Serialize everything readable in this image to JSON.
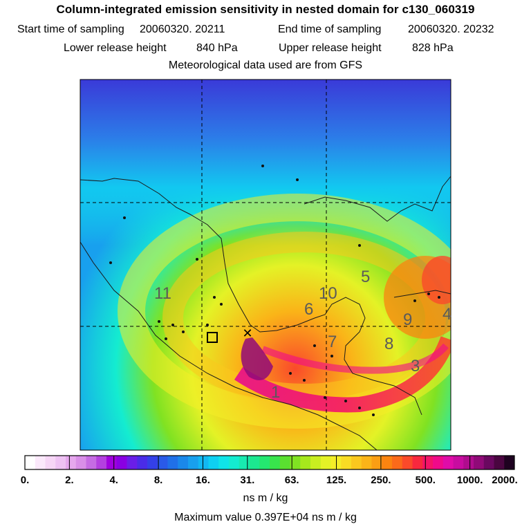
{
  "header": {
    "title": "Column-integrated emission sensitivity in nested domain for c130_060319",
    "start_label": "Start time of sampling",
    "start_value": "20060320. 20211",
    "end_label": "End time of sampling",
    "end_value": "20060320. 20232",
    "lower_label": "Lower release height",
    "lower_value": "840 hPa",
    "upper_label": "Upper release height",
    "upper_value": "828 hPa",
    "met_note": "Meteorological data used are from GFS"
  },
  "map": {
    "region_labels": [
      "11",
      "10",
      "6",
      "5",
      "9",
      "4",
      "7",
      "8",
      "3",
      "1"
    ],
    "gridline_style": "dashed"
  },
  "colorbar": {
    "tick_labels": [
      "0.",
      "2.",
      "4.",
      "8.",
      "16.",
      "31.",
      "63.",
      "125.",
      "250.",
      "500.",
      "1000.",
      "2000."
    ],
    "colors": [
      "#ffffff",
      "#fbe9fb",
      "#f6d6f6",
      "#eec2f3",
      "#e6a8ee",
      "#d98fe8",
      "#c66ce3",
      "#b440df",
      "#a000de",
      "#8a00e3",
      "#6a1ee8",
      "#4a2ce8",
      "#3440e8",
      "#2a5ae8",
      "#2070e8",
      "#1a88ea",
      "#18a0ee",
      "#12b8f2",
      "#0ed0f2",
      "#10e4e8",
      "#14ecd0",
      "#18eab0",
      "#1ce890",
      "#24e870",
      "#38e44c",
      "#5ae030",
      "#80e222",
      "#a6e81c",
      "#c8ee20",
      "#e4f226",
      "#f4ee28",
      "#f8dc24",
      "#fac81e",
      "#fab418",
      "#fa9e14",
      "#fa8410",
      "#fa6a1a",
      "#fa4a2a",
      "#f8283e",
      "#f41468",
      "#f00a8a",
      "#e00ca8",
      "#c80ca0",
      "#b00c8e",
      "#900a78",
      "#6a0860",
      "#4a0640",
      "#1e0220"
    ],
    "units": "ns m / kg"
  },
  "footer": {
    "max_value_label": "Maximum value",
    "max_value": "0.397E+04 ns m / kg"
  }
}
